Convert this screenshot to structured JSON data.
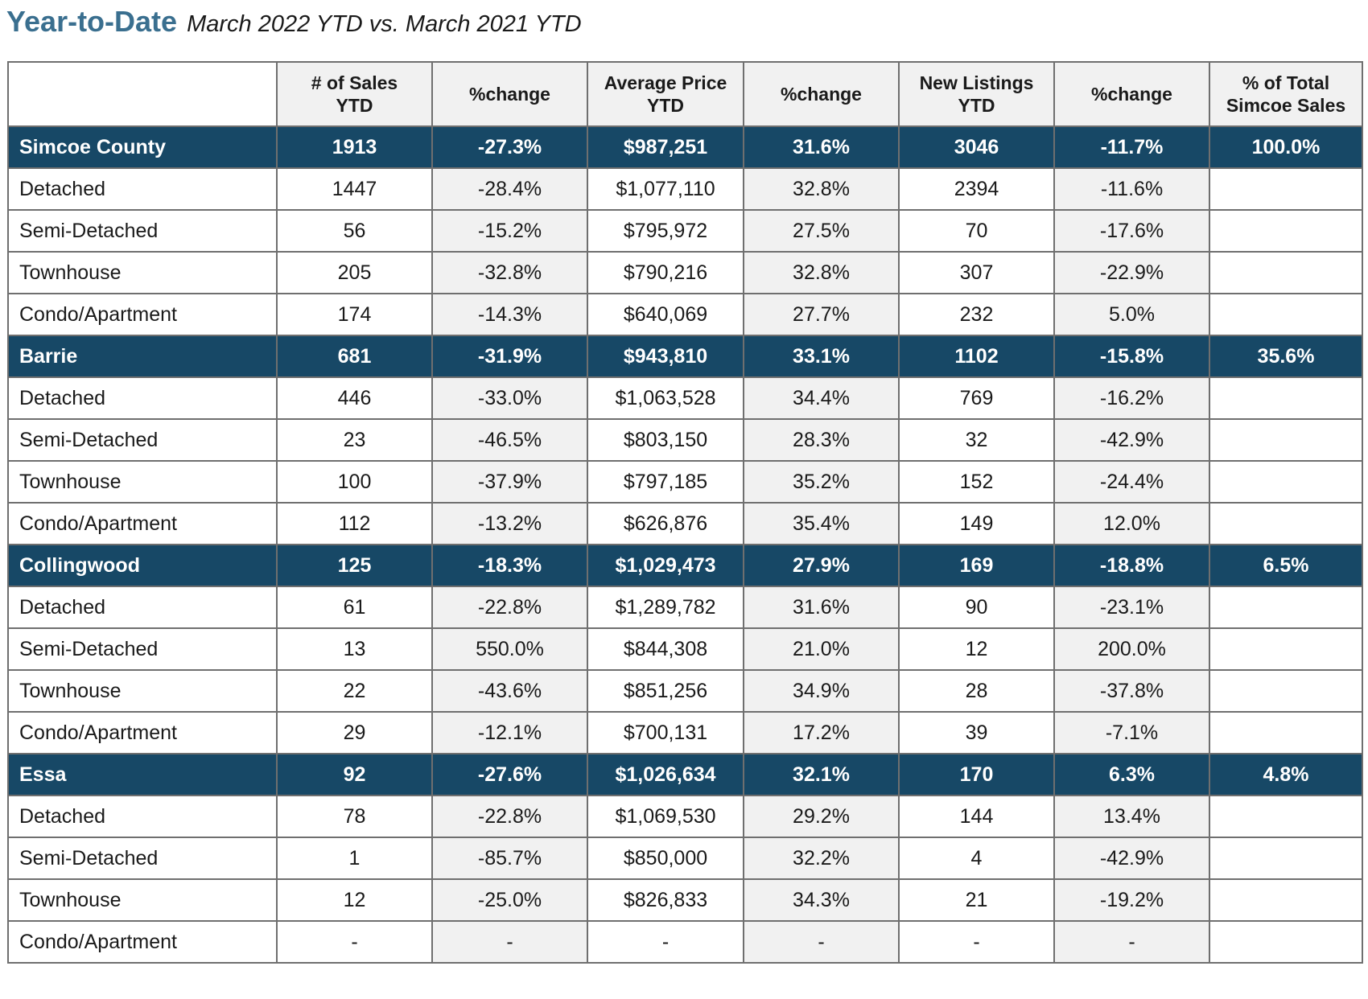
{
  "colors": {
    "title": "#3a6f8f",
    "region_row_bg": "#174866",
    "region_row_text": "#ffffff",
    "alt_cell_bg": "#f1f1f1",
    "border": "#6f6f6f"
  },
  "header": {
    "title": "Year-to-Date",
    "subtitle": "March 2022 YTD vs. March 2021 YTD"
  },
  "table": {
    "columns": [
      "",
      "# of Sales\nYTD",
      "%change",
      "Average Price\nYTD",
      "%change",
      "New Listings\nYTD",
      "%change",
      "% of Total\nSimcoe Sales"
    ],
    "rows": [
      {
        "type": "region",
        "cells": [
          "Simcoe County",
          "1913",
          "-27.3%",
          "$987,251",
          "31.6%",
          "3046",
          "-11.7%",
          "100.0%"
        ]
      },
      {
        "type": "sub",
        "cells": [
          "Detached",
          "1447",
          "-28.4%",
          "$1,077,110",
          "32.8%",
          "2394",
          "-11.6%",
          ""
        ]
      },
      {
        "type": "sub",
        "cells": [
          "Semi-Detached",
          "56",
          "-15.2%",
          "$795,972",
          "27.5%",
          "70",
          "-17.6%",
          ""
        ]
      },
      {
        "type": "sub",
        "cells": [
          "Townhouse",
          "205",
          "-32.8%",
          "$790,216",
          "32.8%",
          "307",
          "-22.9%",
          ""
        ]
      },
      {
        "type": "sub",
        "cells": [
          "Condo/Apartment",
          "174",
          "-14.3%",
          "$640,069",
          "27.7%",
          "232",
          "5.0%",
          ""
        ]
      },
      {
        "type": "region",
        "cells": [
          "Barrie",
          "681",
          "-31.9%",
          "$943,810",
          "33.1%",
          "1102",
          "-15.8%",
          "35.6%"
        ]
      },
      {
        "type": "sub",
        "cells": [
          "Detached",
          "446",
          "-33.0%",
          "$1,063,528",
          "34.4%",
          "769",
          "-16.2%",
          ""
        ]
      },
      {
        "type": "sub",
        "cells": [
          "Semi-Detached",
          "23",
          "-46.5%",
          "$803,150",
          "28.3%",
          "32",
          "-42.9%",
          ""
        ]
      },
      {
        "type": "sub",
        "cells": [
          "Townhouse",
          "100",
          "-37.9%",
          "$797,185",
          "35.2%",
          "152",
          "-24.4%",
          ""
        ]
      },
      {
        "type": "sub",
        "cells": [
          "Condo/Apartment",
          "112",
          "-13.2%",
          "$626,876",
          "35.4%",
          "149",
          "12.0%",
          ""
        ]
      },
      {
        "type": "region",
        "cells": [
          "Collingwood",
          "125",
          "-18.3%",
          "$1,029,473",
          "27.9%",
          "169",
          "-18.8%",
          "6.5%"
        ]
      },
      {
        "type": "sub",
        "cells": [
          "Detached",
          "61",
          "-22.8%",
          "$1,289,782",
          "31.6%",
          "90",
          "-23.1%",
          ""
        ]
      },
      {
        "type": "sub",
        "cells": [
          "Semi-Detached",
          "13",
          "550.0%",
          "$844,308",
          "21.0%",
          "12",
          "200.0%",
          ""
        ]
      },
      {
        "type": "sub",
        "cells": [
          "Townhouse",
          "22",
          "-43.6%",
          "$851,256",
          "34.9%",
          "28",
          "-37.8%",
          ""
        ]
      },
      {
        "type": "sub",
        "cells": [
          "Condo/Apartment",
          "29",
          "-12.1%",
          "$700,131",
          "17.2%",
          "39",
          "-7.1%",
          ""
        ]
      },
      {
        "type": "region",
        "cells": [
          "Essa",
          "92",
          "-27.6%",
          "$1,026,634",
          "32.1%",
          "170",
          "6.3%",
          "4.8%"
        ]
      },
      {
        "type": "sub",
        "cells": [
          "Detached",
          "78",
          "-22.8%",
          "$1,069,530",
          "29.2%",
          "144",
          "13.4%",
          ""
        ]
      },
      {
        "type": "sub",
        "cells": [
          "Semi-Detached",
          "1",
          "-85.7%",
          "$850,000",
          "32.2%",
          "4",
          "-42.9%",
          ""
        ]
      },
      {
        "type": "sub",
        "cells": [
          "Townhouse",
          "12",
          "-25.0%",
          "$826,833",
          "34.3%",
          "21",
          "-19.2%",
          ""
        ]
      },
      {
        "type": "sub",
        "cells": [
          "Condo/Apartment",
          "-",
          "-",
          "-",
          "-",
          "-",
          "-",
          ""
        ]
      }
    ]
  }
}
